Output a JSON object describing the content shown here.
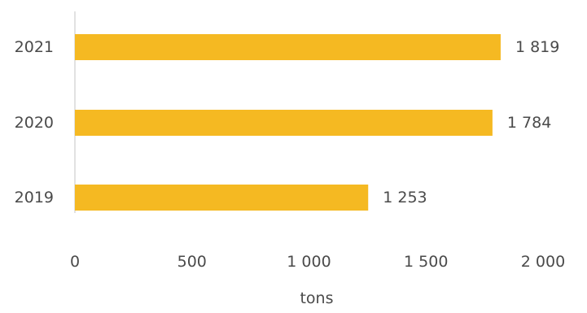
{
  "chart_data": {
    "type": "bar",
    "orientation": "horizontal",
    "categories": [
      "2021",
      "2020",
      "2019"
    ],
    "values": [
      1819,
      1784,
      1253
    ],
    "value_labels": [
      "1 819",
      "1 784",
      "1 253"
    ],
    "xlabel": "tons",
    "ylabel": "",
    "title": "",
    "xlim": [
      0,
      2000
    ],
    "xticks": [
      0,
      500,
      1000,
      1500,
      2000
    ],
    "xtick_labels": [
      "0",
      "500",
      "1 000",
      "1 500",
      "2 000"
    ],
    "grid": false,
    "legend": "none",
    "bar_color": "#F5B922",
    "axis_color": "#D9D9D9"
  }
}
